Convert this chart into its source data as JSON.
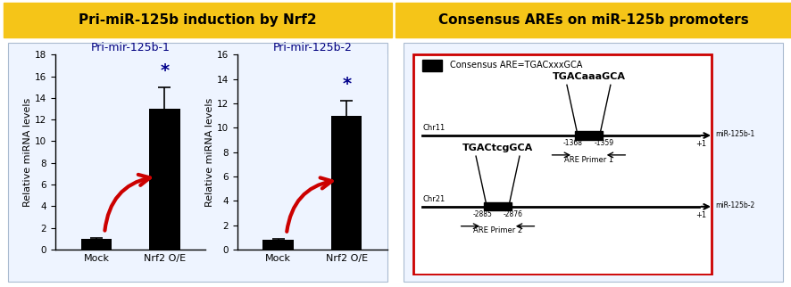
{
  "title_left": "Pri-miR-125b induction by Nrf2",
  "title_right": "Consensus AREs on miR-125b promoters",
  "title_bg_color": "#F5C518",
  "title_text_color": "#000000",
  "panel1_title": "Pri-mir-125b-1",
  "panel2_title": "Pri-mir-125b-2",
  "panel1_categories": [
    "Mock",
    "Nrf2 O/E"
  ],
  "panel2_categories": [
    "Mock",
    "Nrf2 O/E"
  ],
  "panel1_values": [
    1.0,
    13.0
  ],
  "panel2_values": [
    0.8,
    11.0
  ],
  "panel1_errors": [
    0.1,
    2.0
  ],
  "panel2_errors": [
    0.1,
    1.2
  ],
  "bar_color": "#000000",
  "ylabel": "Relative miRNA levels",
  "panel1_ylim": [
    0,
    18
  ],
  "panel2_ylim": [
    0,
    16
  ],
  "panel1_yticks": [
    0,
    2,
    4,
    6,
    8,
    10,
    12,
    14,
    16,
    18
  ],
  "panel2_yticks": [
    0,
    2,
    4,
    6,
    8,
    10,
    12,
    14,
    16
  ],
  "star_color": "#00008B",
  "arrow_color": "#CC0000",
  "panel_bg": "#EEF4FF",
  "chr11_label": "Chr11",
  "chr21_label": "Chr21",
  "are1_label": "TGACaaaGCA",
  "are2_label": "TGACtcgGCA",
  "consensus_label": "Consensus ARE=TGACxxxGCA",
  "pos1_left": "-1368",
  "pos1_right": "-1359",
  "pos2_left": "-2885",
  "pos2_right": "-2876",
  "primer1_label": "ARE Primer 1",
  "primer2_label": "ARE Primer 2",
  "mir125b1_label": "miR-125b-1",
  "mir125b2_label": "miR-125b-2",
  "plus1_label": "+1",
  "red_border_color": "#CC0000"
}
